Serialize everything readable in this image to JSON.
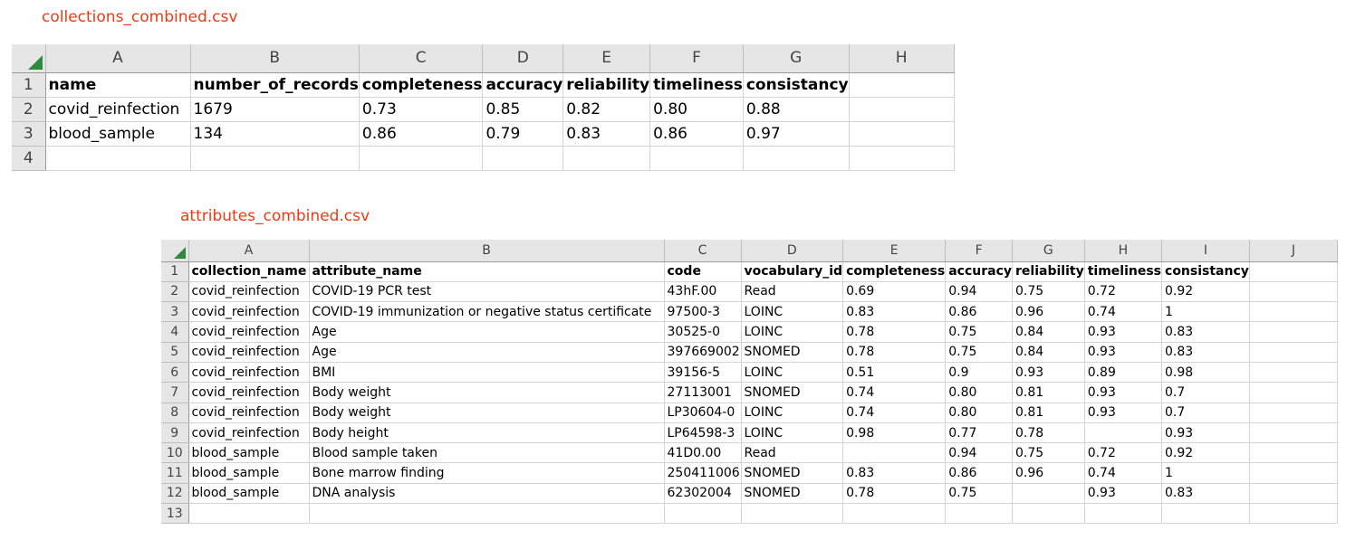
{
  "collections": {
    "filename": "collections_combined.csv",
    "columns": [
      "A",
      "B",
      "C",
      "D",
      "E",
      "F",
      "G",
      "H"
    ],
    "rows": [
      {
        "num": "1",
        "cells": [
          "name",
          "number_of_records",
          "completeness",
          "accuracy",
          "reliability",
          "timeliness",
          "consistancy",
          ""
        ]
      },
      {
        "num": "2",
        "cells": [
          "covid_reinfection",
          "1679",
          "0.73",
          "0.85",
          "0.82",
          "0.80",
          "0.88",
          ""
        ]
      },
      {
        "num": "3",
        "cells": [
          "blood_sample",
          "134",
          "0.86",
          "0.79",
          "0.83",
          "0.86",
          "0.97",
          ""
        ]
      },
      {
        "num": "4",
        "cells": [
          "",
          "",
          "",
          "",
          "",
          "",
          "",
          ""
        ]
      }
    ]
  },
  "attributes": {
    "filename": "attributes_combined.csv",
    "columns": [
      "A",
      "B",
      "C",
      "D",
      "E",
      "F",
      "G",
      "H",
      "I",
      "J"
    ],
    "rows": [
      {
        "num": "1",
        "cells": [
          "collection_name",
          "attribute_name",
          "code",
          "vocabulary_id",
          "completeness",
          "accuracy",
          "reliability",
          "timeliness",
          "consistancy",
          ""
        ]
      },
      {
        "num": "2",
        "cells": [
          "covid_reinfection",
          "COVID-19 PCR test",
          "43hF.00",
          "Read",
          "0.69",
          "0.94",
          "0.75",
          "0.72",
          "0.92",
          ""
        ]
      },
      {
        "num": "3",
        "cells": [
          "covid_reinfection",
          "COVID-19 immunization or negative status certificate",
          "97500-3",
          "LOINC",
          "0.83",
          "0.86",
          "0.96",
          "0.74",
          "1",
          ""
        ]
      },
      {
        "num": "4",
        "cells": [
          "covid_reinfection",
          "Age",
          "30525-0",
          "LOINC",
          "0.78",
          "0.75",
          "0.84",
          "0.93",
          "0.83",
          ""
        ]
      },
      {
        "num": "5",
        "cells": [
          "covid_reinfection",
          "Age",
          "397669002",
          "SNOMED",
          "0.78",
          "0.75",
          "0.84",
          "0.93",
          "0.83",
          ""
        ]
      },
      {
        "num": "6",
        "cells": [
          "covid_reinfection",
          "BMI",
          "39156-5",
          "LOINC",
          "0.51",
          "0.9",
          "0.93",
          "0.89",
          "0.98",
          ""
        ]
      },
      {
        "num": "7",
        "cells": [
          "covid_reinfection",
          "Body weight",
          "27113001",
          "SNOMED",
          "0.74",
          "0.80",
          "0.81",
          "0.93",
          "0.7",
          ""
        ]
      },
      {
        "num": "8",
        "cells": [
          "covid_reinfection",
          "Body weight",
          "LP30604-0",
          "LOINC",
          "0.74",
          "0.80",
          "0.81",
          "0.93",
          "0.7",
          ""
        ]
      },
      {
        "num": "9",
        "cells": [
          "covid_reinfection",
          "Body height",
          "LP64598-3",
          "LOINC",
          "0.98",
          "0.77",
          "0.78",
          "",
          "0.93",
          ""
        ]
      },
      {
        "num": "10",
        "cells": [
          "blood_sample",
          "Blood sample taken",
          "41D0.00",
          "Read",
          "",
          "0.94",
          "0.75",
          "0.72",
          "0.92",
          ""
        ]
      },
      {
        "num": "11",
        "cells": [
          "blood_sample",
          "Bone marrow finding",
          "250411006",
          "SNOMED",
          "0.83",
          "0.86",
          "0.96",
          "0.74",
          "1",
          ""
        ]
      },
      {
        "num": "12",
        "cells": [
          "blood_sample",
          "DNA analysis",
          "62302004",
          "SNOMED",
          "0.78",
          "0.75",
          "",
          "0.93",
          "0.83",
          ""
        ]
      },
      {
        "num": "13",
        "cells": [
          "",
          "",
          "",
          "",
          "",
          "",
          "",
          "",
          "",
          ""
        ]
      }
    ]
  },
  "colors": {
    "caption": "#ee3a14",
    "header_bg": "#e6e6e6",
    "select_all_triangle": "#2e8b3e"
  }
}
